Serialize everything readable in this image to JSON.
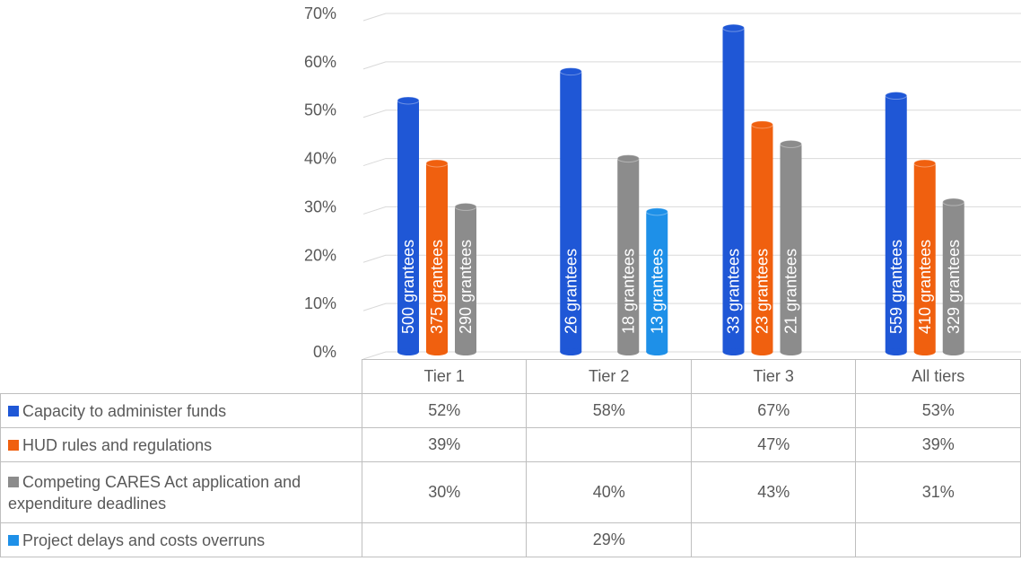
{
  "chart_data": {
    "type": "bar",
    "categories": [
      "Tier 1",
      "Tier 2",
      "Tier 3",
      "All tiers"
    ],
    "ylim": [
      0,
      70
    ],
    "yticks": [
      {
        "value": 0,
        "label": "0%"
      },
      {
        "value": 10,
        "label": "10%"
      },
      {
        "value": 20,
        "label": "20%"
      },
      {
        "value": 30,
        "label": "30%"
      },
      {
        "value": 40,
        "label": "40%"
      },
      {
        "value": 50,
        "label": "50%"
      },
      {
        "value": 60,
        "label": "60%"
      },
      {
        "value": 70,
        "label": "70%"
      }
    ],
    "grid": true,
    "series": [
      {
        "name": "Capacity to administer funds",
        "color": "#1f57d6",
        "values": [
          52,
          58,
          67,
          53
        ],
        "value_labels": [
          "52%",
          "58%",
          "67%",
          "53%"
        ],
        "grantee_labels": [
          "500 grantees",
          "26 grantees",
          "33 grantees",
          "559 grantees"
        ]
      },
      {
        "name": "HUD rules and regulations",
        "color": "#f0600f",
        "values": [
          39,
          null,
          47,
          39
        ],
        "value_labels": [
          "39%",
          null,
          "47%",
          "39%"
        ],
        "grantee_labels": [
          "375 grantees",
          null,
          "23 grantees",
          "410 grantees"
        ]
      },
      {
        "name": "Competing CARES Act application and expenditure deadlines",
        "color": "#8c8c8c",
        "values": [
          30,
          40,
          43,
          31
        ],
        "value_labels": [
          "30%",
          "40%",
          "43%",
          "31%"
        ],
        "grantee_labels": [
          "290 grantees",
          "18 grantees",
          "21 grantees",
          "329 grantees"
        ]
      },
      {
        "name": "Project delays and costs overruns",
        "color": "#1e90e8",
        "values": [
          null,
          29,
          null,
          null
        ],
        "value_labels": [
          null,
          "29%",
          null,
          null
        ],
        "grantee_labels": [
          null,
          "13 grantees",
          null,
          null
        ]
      }
    ]
  }
}
